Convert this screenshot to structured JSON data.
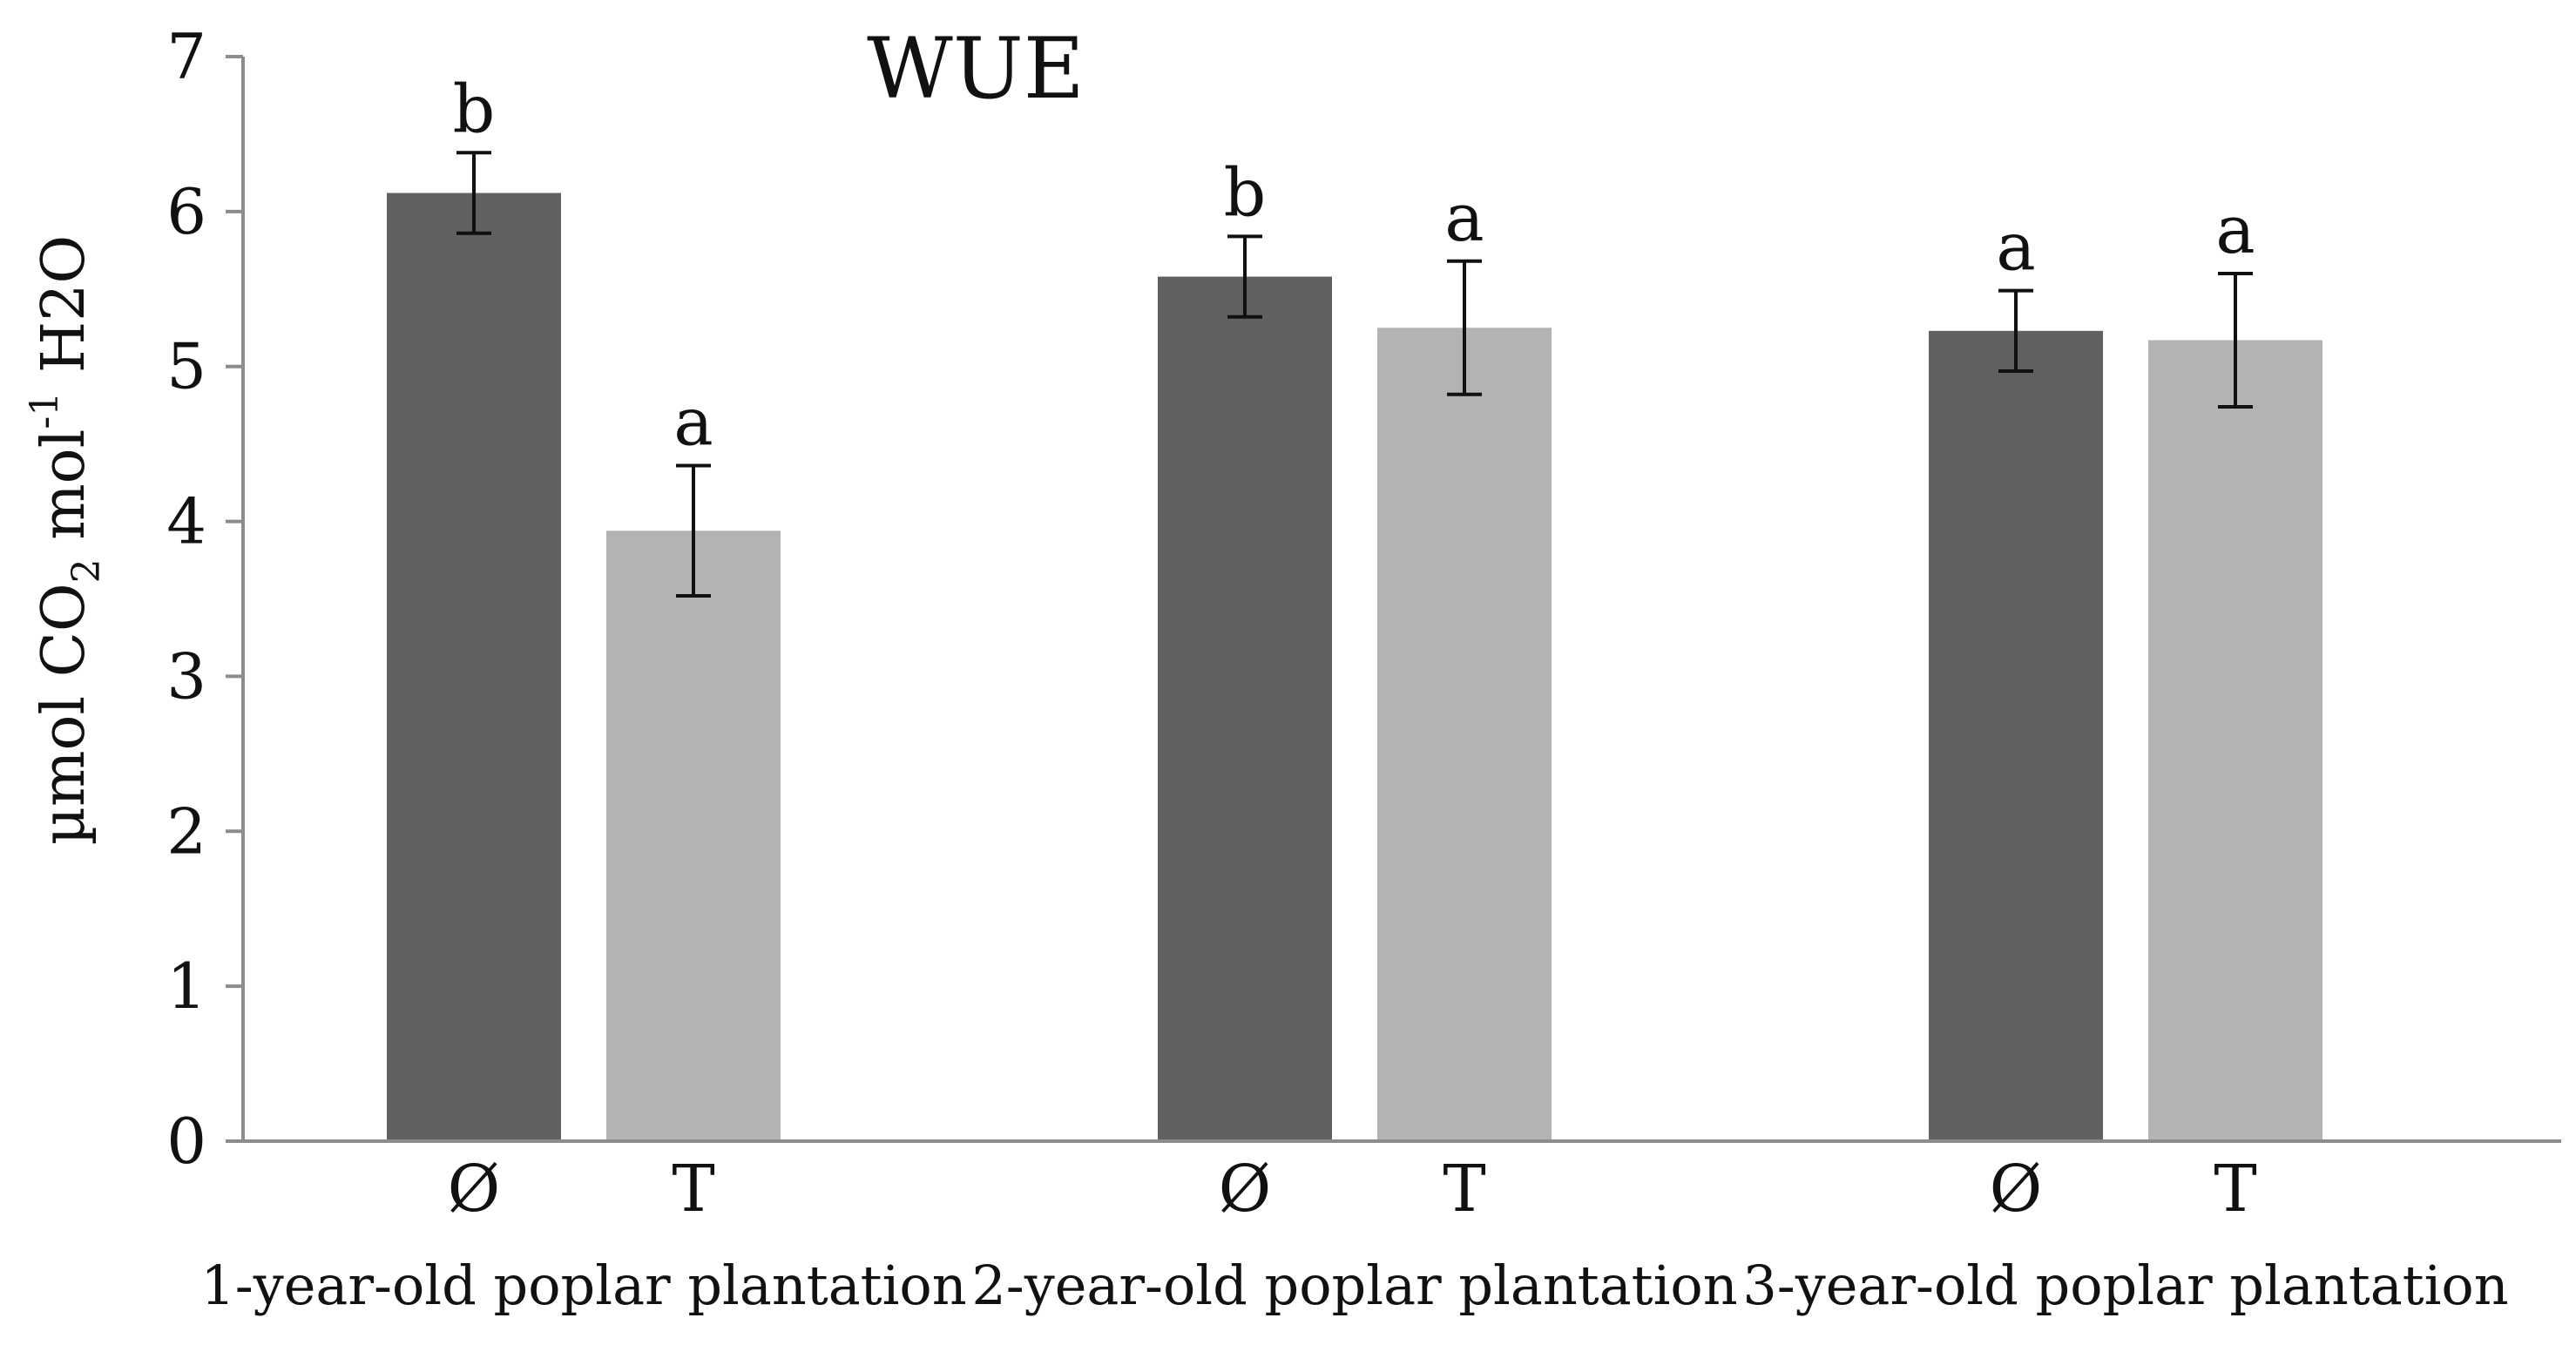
{
  "chart_data": {
    "type": "bar",
    "title": "WUE",
    "ylabel": {
      "prefix": "µmol CO",
      "sub": "2",
      "middle": " mol",
      "sup": "-1",
      "suffix": " H2O"
    },
    "ylim": [
      0,
      7
    ],
    "yticks": [
      0,
      1,
      2,
      3,
      4,
      5,
      6,
      7
    ],
    "categories": [
      "1-year-old poplar plantation",
      "2-year-old poplar plantation",
      "3-year-old poplar plantation"
    ],
    "series": [
      {
        "name": "Ø",
        "color": "#616161",
        "values": [
          6.12,
          5.58,
          5.23
        ],
        "errors": [
          0.26,
          0.26,
          0.26
        ],
        "letters": [
          "b",
          "b",
          "a"
        ]
      },
      {
        "name": "T",
        "color": "#b3b3b3",
        "values": [
          3.94,
          5.25,
          5.17
        ],
        "errors": [
          0.42,
          0.43,
          0.43
        ],
        "letters": [
          "a",
          "a",
          "a"
        ]
      }
    ],
    "grid": false,
    "legend": "none"
  }
}
